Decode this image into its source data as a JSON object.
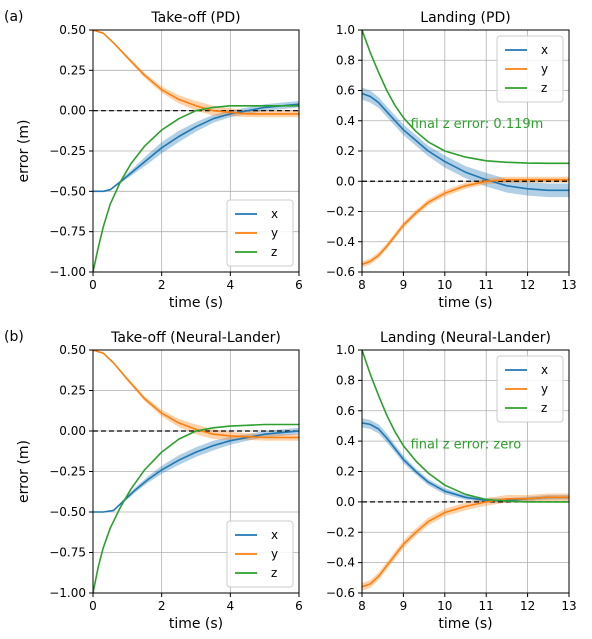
{
  "colors": {
    "x": "#1f77b4",
    "y": "#ff7f0e",
    "z": "#2ca02c",
    "ref": "#000000",
    "grid": "#b0b0b0"
  },
  "chart_data": [
    {
      "type": "line",
      "tag": "(a)",
      "title": "Take-off (PD)",
      "xlabel": "time (s)",
      "ylabel": "error (m)",
      "xlim": [
        0,
        6
      ],
      "ylim": [
        -1.0,
        0.5
      ],
      "xticks": [
        "0",
        "2",
        "4",
        "6"
      ],
      "yticks": [
        "0.50",
        "0.25",
        "0.00",
        "−0.25",
        "−0.50",
        "−0.75",
        "−1.00"
      ],
      "grid": true,
      "legend": "lower-right",
      "annotation": "",
      "reference_line": 0,
      "series": [
        {
          "name": "x",
          "x": [
            0,
            0.3,
            0.5,
            0.8,
            1.2,
            1.6,
            2,
            2.5,
            3,
            3.5,
            4,
            4.5,
            5,
            5.5,
            6
          ],
          "y": [
            -0.5,
            -0.5,
            -0.49,
            -0.44,
            -0.37,
            -0.3,
            -0.23,
            -0.16,
            -0.1,
            -0.05,
            -0.02,
            0,
            0.02,
            0.03,
            0.04
          ],
          "band": [
            0,
            0,
            0,
            0.01,
            0.02,
            0.03,
            0.035,
            0.035,
            0.03,
            0.025,
            0.02,
            0.02,
            0.02,
            0.02,
            0.02
          ]
        },
        {
          "name": "y",
          "x": [
            0,
            0.3,
            0.6,
            1,
            1.5,
            2,
            2.5,
            3,
            3.5,
            4,
            4.5,
            5,
            5.5,
            6
          ],
          "y": [
            0.5,
            0.48,
            0.42,
            0.33,
            0.22,
            0.13,
            0.07,
            0.03,
            0,
            -0.01,
            -0.02,
            -0.02,
            -0.02,
            -0.02
          ],
          "band": [
            0,
            0,
            0.005,
            0.01,
            0.015,
            0.02,
            0.025,
            0.03,
            0.03,
            0.025,
            0.02,
            0.02,
            0.02,
            0.02
          ]
        },
        {
          "name": "z",
          "x": [
            0,
            0.15,
            0.3,
            0.5,
            0.8,
            1.1,
            1.5,
            2,
            2.5,
            3,
            3.5,
            4,
            4.5,
            5,
            5.5,
            6
          ],
          "y": [
            -1.0,
            -0.85,
            -0.72,
            -0.58,
            -0.44,
            -0.33,
            -0.22,
            -0.12,
            -0.05,
            0,
            0.02,
            0.03,
            0.03,
            0.03,
            0.03,
            0.03
          ],
          "band": [
            0,
            0,
            0,
            0,
            0,
            0,
            0,
            0,
            0,
            0,
            0,
            0,
            0,
            0,
            0,
            0
          ]
        }
      ]
    },
    {
      "type": "line",
      "tag": "",
      "title": "Landing (PD)",
      "xlabel": "time (s)",
      "ylabel": "",
      "xlim": [
        8,
        13
      ],
      "ylim": [
        -0.6,
        1.0
      ],
      "xticks": [
        "8",
        "9",
        "10",
        "11",
        "12",
        "13"
      ],
      "yticks": [
        "1.0",
        "0.8",
        "0.6",
        "0.4",
        "0.2",
        "0.0",
        "−0.2",
        "−0.4",
        "−0.6"
      ],
      "grid": true,
      "legend": "upper-right",
      "annotation": "final z error: 0.119m",
      "reference_line": 0,
      "series": [
        {
          "name": "x",
          "x": [
            8,
            8.2,
            8.4,
            8.6,
            8.8,
            9,
            9.3,
            9.6,
            10,
            10.5,
            11,
            11.5,
            12,
            12.5,
            13
          ],
          "y": [
            0.58,
            0.56,
            0.52,
            0.46,
            0.4,
            0.34,
            0.27,
            0.2,
            0.13,
            0.06,
            0.01,
            -0.03,
            -0.05,
            -0.06,
            -0.06
          ],
          "band": [
            0.04,
            0.04,
            0.035,
            0.035,
            0.035,
            0.035,
            0.035,
            0.035,
            0.04,
            0.04,
            0.045,
            0.045,
            0.045,
            0.045,
            0.045
          ]
        },
        {
          "name": "y",
          "x": [
            8,
            8.2,
            8.4,
            8.6,
            8.8,
            9,
            9.3,
            9.6,
            10,
            10.5,
            11,
            11.5,
            12,
            12.5,
            13
          ],
          "y": [
            -0.55,
            -0.53,
            -0.49,
            -0.43,
            -0.36,
            -0.29,
            -0.21,
            -0.14,
            -0.08,
            -0.03,
            0,
            0.01,
            0.01,
            0.01,
            0.01
          ],
          "band": [
            0.02,
            0.02,
            0.02,
            0.02,
            0.02,
            0.02,
            0.02,
            0.02,
            0.02,
            0.02,
            0.02,
            0.02,
            0.02,
            0.02,
            0.02
          ]
        },
        {
          "name": "z",
          "x": [
            8,
            8.2,
            8.4,
            8.6,
            8.8,
            9,
            9.3,
            9.6,
            10,
            10.5,
            11,
            11.5,
            12,
            12.5,
            13
          ],
          "y": [
            1.0,
            0.85,
            0.72,
            0.6,
            0.5,
            0.42,
            0.33,
            0.26,
            0.2,
            0.16,
            0.135,
            0.125,
            0.12,
            0.119,
            0.119
          ],
          "band": [
            0,
            0,
            0,
            0,
            0,
            0,
            0,
            0,
            0,
            0,
            0,
            0,
            0,
            0,
            0
          ]
        }
      ]
    },
    {
      "type": "line",
      "tag": "(b)",
      "title": "Take-off (Neural-Lander)",
      "xlabel": "time (s)",
      "ylabel": "error (m)",
      "xlim": [
        0,
        6
      ],
      "ylim": [
        -1.0,
        0.5
      ],
      "xticks": [
        "0",
        "2",
        "4",
        "6"
      ],
      "yticks": [
        "0.50",
        "0.25",
        "0.00",
        "−0.25",
        "−0.50",
        "−0.75",
        "−1.00"
      ],
      "grid": true,
      "legend": "lower-right",
      "annotation": "",
      "reference_line": 0,
      "series": [
        {
          "name": "x",
          "x": [
            0,
            0.3,
            0.6,
            0.9,
            1.2,
            1.6,
            2,
            2.5,
            3,
            3.5,
            4,
            4.5,
            5,
            5.5,
            6
          ],
          "y": [
            -0.5,
            -0.5,
            -0.49,
            -0.43,
            -0.37,
            -0.3,
            -0.24,
            -0.18,
            -0.13,
            -0.09,
            -0.06,
            -0.04,
            -0.02,
            -0.01,
            0
          ],
          "band": [
            0,
            0,
            0,
            0.01,
            0.015,
            0.02,
            0.025,
            0.03,
            0.03,
            0.03,
            0.025,
            0.02,
            0.02,
            0.02,
            0.02
          ]
        },
        {
          "name": "y",
          "x": [
            0,
            0.3,
            0.6,
            1,
            1.5,
            2,
            2.5,
            3,
            3.5,
            4,
            4.5,
            5,
            5.5,
            6
          ],
          "y": [
            0.5,
            0.48,
            0.42,
            0.32,
            0.2,
            0.11,
            0.05,
            0.01,
            -0.02,
            -0.03,
            -0.035,
            -0.04,
            -0.04,
            -0.04
          ],
          "band": [
            0,
            0,
            0.005,
            0.01,
            0.015,
            0.02,
            0.025,
            0.03,
            0.03,
            0.025,
            0.02,
            0.02,
            0.02,
            0.02
          ]
        },
        {
          "name": "z",
          "x": [
            0,
            0.15,
            0.3,
            0.5,
            0.8,
            1.1,
            1.5,
            2,
            2.5,
            3,
            3.5,
            4,
            4.5,
            5,
            5.5,
            6
          ],
          "y": [
            -1.0,
            -0.84,
            -0.72,
            -0.6,
            -0.47,
            -0.36,
            -0.24,
            -0.13,
            -0.05,
            0,
            0.02,
            0.03,
            0.035,
            0.04,
            0.04,
            0.04
          ],
          "band": [
            0,
            0,
            0,
            0,
            0,
            0,
            0,
            0,
            0,
            0,
            0,
            0,
            0,
            0,
            0,
            0
          ]
        }
      ]
    },
    {
      "type": "line",
      "tag": "",
      "title": "Landing (Neural-Lander)",
      "xlabel": "time (s)",
      "ylabel": "",
      "xlim": [
        8,
        13
      ],
      "ylim": [
        -0.6,
        1.0
      ],
      "xticks": [
        "8",
        "9",
        "10",
        "11",
        "12",
        "13"
      ],
      "yticks": [
        "1.0",
        "0.8",
        "0.6",
        "0.4",
        "0.2",
        "0.0",
        "−0.2",
        "−0.4",
        "−0.6"
      ],
      "grid": true,
      "legend": "upper-right",
      "annotation": "final z error: zero",
      "reference_line": 0,
      "series": [
        {
          "name": "x",
          "x": [
            8,
            8.2,
            8.4,
            8.6,
            8.8,
            9,
            9.3,
            9.6,
            10,
            10.5,
            11,
            11.5,
            12,
            12.5,
            13
          ],
          "y": [
            0.52,
            0.51,
            0.48,
            0.42,
            0.35,
            0.28,
            0.2,
            0.13,
            0.07,
            0.03,
            0.01,
            0.01,
            0.02,
            0.03,
            0.03
          ],
          "band": [
            0.03,
            0.03,
            0.03,
            0.03,
            0.025,
            0.025,
            0.02,
            0.02,
            0.02,
            0.015,
            0.015,
            0.015,
            0.015,
            0.015,
            0.015
          ]
        },
        {
          "name": "y",
          "x": [
            8,
            8.2,
            8.4,
            8.6,
            8.8,
            9,
            9.3,
            9.6,
            10,
            10.5,
            11,
            11.5,
            12,
            12.5,
            13
          ],
          "y": [
            -0.56,
            -0.54,
            -0.49,
            -0.42,
            -0.35,
            -0.28,
            -0.2,
            -0.13,
            -0.07,
            -0.03,
            0,
            0.02,
            0.02,
            0.03,
            0.03
          ],
          "band": [
            0.025,
            0.025,
            0.025,
            0.025,
            0.025,
            0.025,
            0.025,
            0.025,
            0.025,
            0.025,
            0.025,
            0.025,
            0.025,
            0.025,
            0.025
          ]
        },
        {
          "name": "z",
          "x": [
            8,
            8.2,
            8.4,
            8.6,
            8.8,
            9,
            9.3,
            9.6,
            10,
            10.5,
            11,
            11.5,
            12,
            12.5,
            13
          ],
          "y": [
            1.0,
            0.84,
            0.7,
            0.57,
            0.46,
            0.37,
            0.27,
            0.19,
            0.11,
            0.05,
            0.015,
            0.005,
            0,
            0,
            0
          ],
          "band": [
            0,
            0,
            0,
            0,
            0,
            0,
            0,
            0,
            0,
            0,
            0,
            0,
            0,
            0,
            0
          ]
        }
      ]
    }
  ]
}
